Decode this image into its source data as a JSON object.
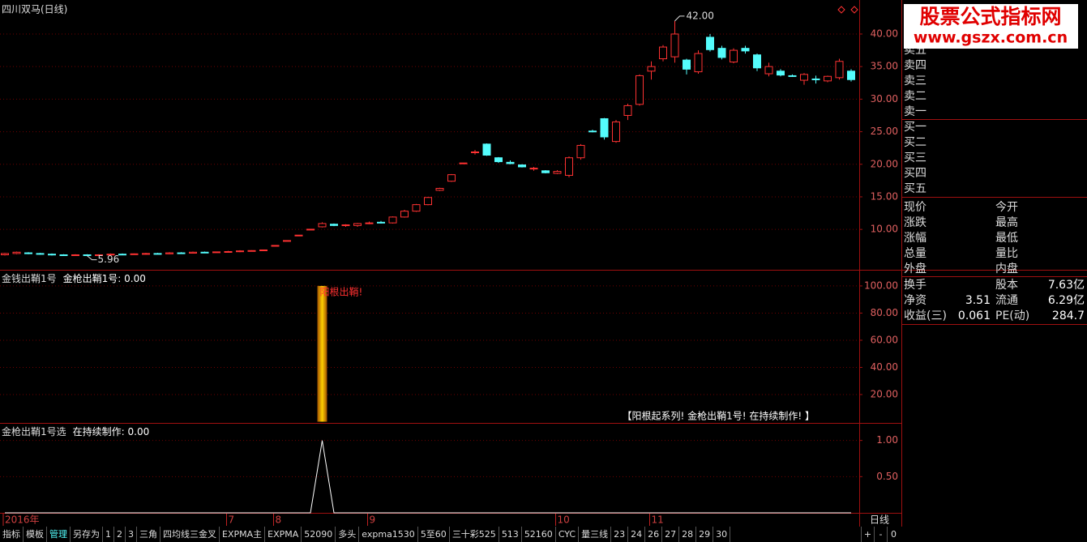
{
  "header": {
    "title": "四川双马(日线)"
  },
  "chart_data": [
    {
      "type": "candlestick",
      "categories": [
        "2016年",
        null,
        null,
        null,
        null,
        null,
        null,
        null,
        null,
        null,
        null,
        null,
        null,
        null,
        null,
        null,
        null,
        null,
        null,
        "7",
        null,
        null,
        null,
        "8",
        null,
        null,
        null,
        null,
        null,
        null,
        null,
        "9",
        null,
        null,
        null,
        null,
        null,
        null,
        null,
        null,
        null,
        null,
        null,
        null,
        null,
        null,
        null,
        "10",
        null,
        null,
        null,
        null,
        null,
        null,
        null,
        "11",
        null,
        null,
        null,
        null,
        null,
        null,
        null,
        null,
        null,
        null,
        null,
        null,
        null,
        null,
        null,
        null,
        null
      ],
      "open": [
        6.1,
        6.3,
        6.4,
        6.3,
        6.2,
        6.1,
        6.0,
        6.1,
        6.0,
        6.1,
        6.2,
        6.15,
        6.2,
        6.3,
        6.25,
        6.4,
        6.35,
        6.5,
        6.45,
        6.55,
        6.6,
        6.7,
        6.75,
        7.54,
        8.29,
        9.12,
        10.03,
        10.4,
        10.8,
        10.6,
        10.6,
        10.9,
        11.1,
        11.0,
        11.9,
        12.8,
        13.8,
        16.0,
        17.4,
        20.2,
        21.8,
        23.1,
        21.0,
        20.3,
        19.9,
        19.3,
        19.0,
        18.6,
        18.3,
        21.0,
        25.1,
        27.0,
        23.5,
        27.5,
        29.2,
        34.3,
        36.2,
        36.5,
        36.0,
        34.2,
        39.5,
        37.8,
        35.7,
        37.8,
        36.8,
        33.9,
        34.3,
        33.6,
        32.9,
        33.1,
        32.8,
        33.3,
        34.3
      ],
      "high": [
        6.4,
        6.6,
        6.5,
        6.4,
        6.3,
        6.2,
        6.2,
        6.2,
        6.2,
        6.3,
        6.3,
        6.3,
        6.4,
        6.4,
        6.5,
        6.5,
        6.6,
        6.6,
        6.6,
        6.7,
        6.8,
        6.8,
        6.9,
        7.54,
        8.29,
        9.12,
        10.03,
        11.1,
        10.9,
        10.8,
        11.0,
        11.2,
        11.3,
        12.0,
        13.0,
        13.9,
        15.0,
        16.4,
        18.5,
        20.2,
        22.2,
        23.2,
        21.1,
        20.6,
        20.0,
        19.6,
        19.1,
        19.1,
        21.2,
        23.1,
        25.3,
        27.1,
        26.8,
        29.3,
        33.8,
        35.8,
        38.3,
        42.0,
        36.2,
        37.5,
        40.0,
        38.2,
        37.8,
        38.2,
        37.0,
        35.6,
        34.6,
        33.8,
        34.0,
        33.6,
        33.6,
        36.2,
        34.6
      ],
      "low": [
        6.0,
        6.2,
        6.2,
        6.1,
        6.0,
        5.98,
        5.98,
        5.96,
        5.98,
        6.0,
        6.1,
        6.1,
        6.1,
        6.2,
        6.2,
        6.3,
        6.3,
        6.4,
        6.4,
        6.5,
        6.5,
        6.6,
        6.7,
        7.54,
        8.29,
        9.12,
        10.03,
        10.3,
        10.5,
        10.4,
        10.4,
        10.8,
        10.9,
        10.9,
        11.8,
        12.7,
        13.7,
        15.9,
        17.3,
        20.2,
        21.5,
        21.3,
        20.2,
        20.0,
        19.5,
        19.0,
        18.6,
        18.5,
        18.0,
        20.7,
        24.9,
        23.8,
        23.3,
        26.8,
        29.0,
        33.0,
        35.8,
        35.6,
        33.8,
        33.9,
        37.3,
        36.1,
        35.5,
        37.0,
        34.3,
        33.5,
        33.5,
        33.4,
        32.2,
        32.4,
        32.6,
        33.0,
        32.7
      ],
      "close": [
        6.3,
        6.5,
        6.3,
        6.2,
        6.1,
        6.0,
        6.1,
        6.0,
        6.1,
        6.2,
        6.15,
        6.25,
        6.3,
        6.25,
        6.4,
        6.35,
        6.5,
        6.45,
        6.55,
        6.6,
        6.7,
        6.75,
        6.85,
        7.54,
        8.29,
        9.12,
        10.03,
        10.9,
        10.6,
        10.7,
        10.9,
        11.0,
        11.0,
        11.9,
        12.8,
        13.8,
        14.9,
        16.3,
        18.4,
        20.2,
        21.9,
        21.4,
        20.4,
        20.1,
        19.6,
        19.4,
        18.7,
        18.9,
        21.0,
        22.9,
        25.0,
        24.2,
        26.5,
        29.0,
        33.6,
        35.0,
        38.0,
        40.0,
        34.6,
        37.0,
        37.6,
        36.4,
        37.5,
        37.4,
        34.8,
        35.0,
        33.7,
        33.5,
        33.8,
        33.0,
        33.5,
        35.8,
        33.0
      ],
      "up_color": "#ff3232",
      "down_color": "#54fcfc",
      "ylim": [
        3.8,
        44.6
      ],
      "yticks": [
        {
          "value": 10,
          "label": "10.00"
        },
        {
          "value": 15,
          "label": "15.00"
        },
        {
          "value": 20,
          "label": "20.00"
        },
        {
          "value": 25,
          "label": "25.00"
        },
        {
          "value": 30,
          "label": "30.00"
        },
        {
          "value": 35,
          "label": "35.00"
        },
        {
          "value": 40,
          "label": "40.00"
        }
      ],
      "grid": true,
      "annotations": [
        {
          "text": "42.00"
        },
        {
          "text": "5.96"
        }
      ]
    },
    {
      "type": "bar",
      "title": "金钱出鞘1号",
      "subtitle": "金枪出鞘1号: 0.00",
      "color": "#ffd000",
      "values": [
        0,
        0,
        0,
        0,
        0,
        0,
        0,
        0,
        0,
        0,
        0,
        0,
        0,
        0,
        0,
        0,
        0,
        0,
        0,
        0,
        0,
        0,
        0,
        0,
        0,
        0,
        0,
        100,
        0,
        0,
        0,
        0,
        0,
        0,
        0,
        0,
        0,
        0,
        0,
        0,
        0,
        0,
        0,
        0,
        0,
        0,
        0,
        0,
        0,
        0,
        0,
        0,
        0,
        0,
        0,
        0,
        0,
        0,
        0,
        0,
        0,
        0,
        0,
        0,
        0,
        0,
        0,
        0,
        0,
        0,
        0,
        0,
        0
      ],
      "ylim": [
        -0.9,
        110.7
      ],
      "yticks": [
        {
          "value": 20,
          "label": "20.00"
        },
        {
          "value": 40,
          "label": "40.00"
        },
        {
          "value": 60,
          "label": "60.00"
        },
        {
          "value": 80,
          "label": "80.00"
        },
        {
          "value": 100,
          "label": "100.00"
        }
      ],
      "grid": true,
      "annotations": [
        {
          "text": "阳根出鞘!"
        },
        {
          "text": "【阳根起系列! 金枪出鞘1号! 在持续制作! 】"
        }
      ]
    },
    {
      "type": "line",
      "title": "金枪出鞘1号选",
      "subtitle": "在持续制作: 0.00",
      "color": "#ffffff",
      "values": [
        0,
        0,
        0,
        0,
        0,
        0,
        0,
        0,
        0,
        0,
        0,
        0,
        0,
        0,
        0,
        0,
        0,
        0,
        0,
        0,
        0,
        0,
        0,
        0,
        0,
        0,
        0,
        1,
        0,
        0,
        0,
        0,
        0,
        0,
        0,
        0,
        0,
        0,
        0,
        0,
        0,
        0,
        0,
        0,
        0,
        0,
        0,
        0,
        0,
        0,
        0,
        0,
        0,
        0,
        0,
        0,
        0,
        0,
        0,
        0,
        0,
        0,
        0,
        0,
        0,
        0,
        0,
        0,
        0,
        0,
        0,
        0,
        0
      ],
      "ylim": [
        0,
        1.22
      ],
      "yticks": [
        {
          "value": 0.5,
          "label": "0.50"
        },
        {
          "value": 1,
          "label": "1.00"
        }
      ],
      "grid": true
    }
  ],
  "logo": {
    "title": "股票公式指标网",
    "url": "www.gszx.com.cn"
  },
  "order_book": {
    "sell": [
      "卖五",
      "卖四",
      "卖三",
      "卖二",
      "卖一"
    ],
    "buy": [
      "买一",
      "买二",
      "买三",
      "买四",
      "买五"
    ]
  },
  "quote": [
    [
      "现价",
      "今开"
    ],
    [
      "涨跌",
      "最高"
    ],
    [
      "涨幅",
      "最低"
    ],
    [
      "总量",
      "量比"
    ],
    [
      "外盘",
      "内盘"
    ]
  ],
  "stats": [
    [
      {
        "label": "换手"
      },
      {
        "label": "股本",
        "value": "7.63亿"
      }
    ],
    [
      {
        "label": "净资",
        "value": "3.51"
      },
      {
        "label": "流通",
        "value": "6.29亿"
      }
    ],
    [
      {
        "label": "收益(三)",
        "value": "0.061"
      },
      {
        "label": "PE(动)",
        "value": "284.7"
      }
    ]
  ],
  "period": "日线",
  "toolbar": [
    "指标",
    "模板",
    "管理",
    "另存为",
    "1",
    "2",
    "3",
    "三角",
    "四均线三金叉",
    "EXPMA主",
    "EXPMA",
    "52090",
    "多头",
    "expma1530",
    "5至60",
    "三十彩525",
    "513",
    "52160",
    "CYC",
    "量三线",
    "23",
    "24",
    "26",
    "27",
    "28",
    "29",
    "30"
  ],
  "controls": [
    "+",
    "-",
    "0"
  ]
}
